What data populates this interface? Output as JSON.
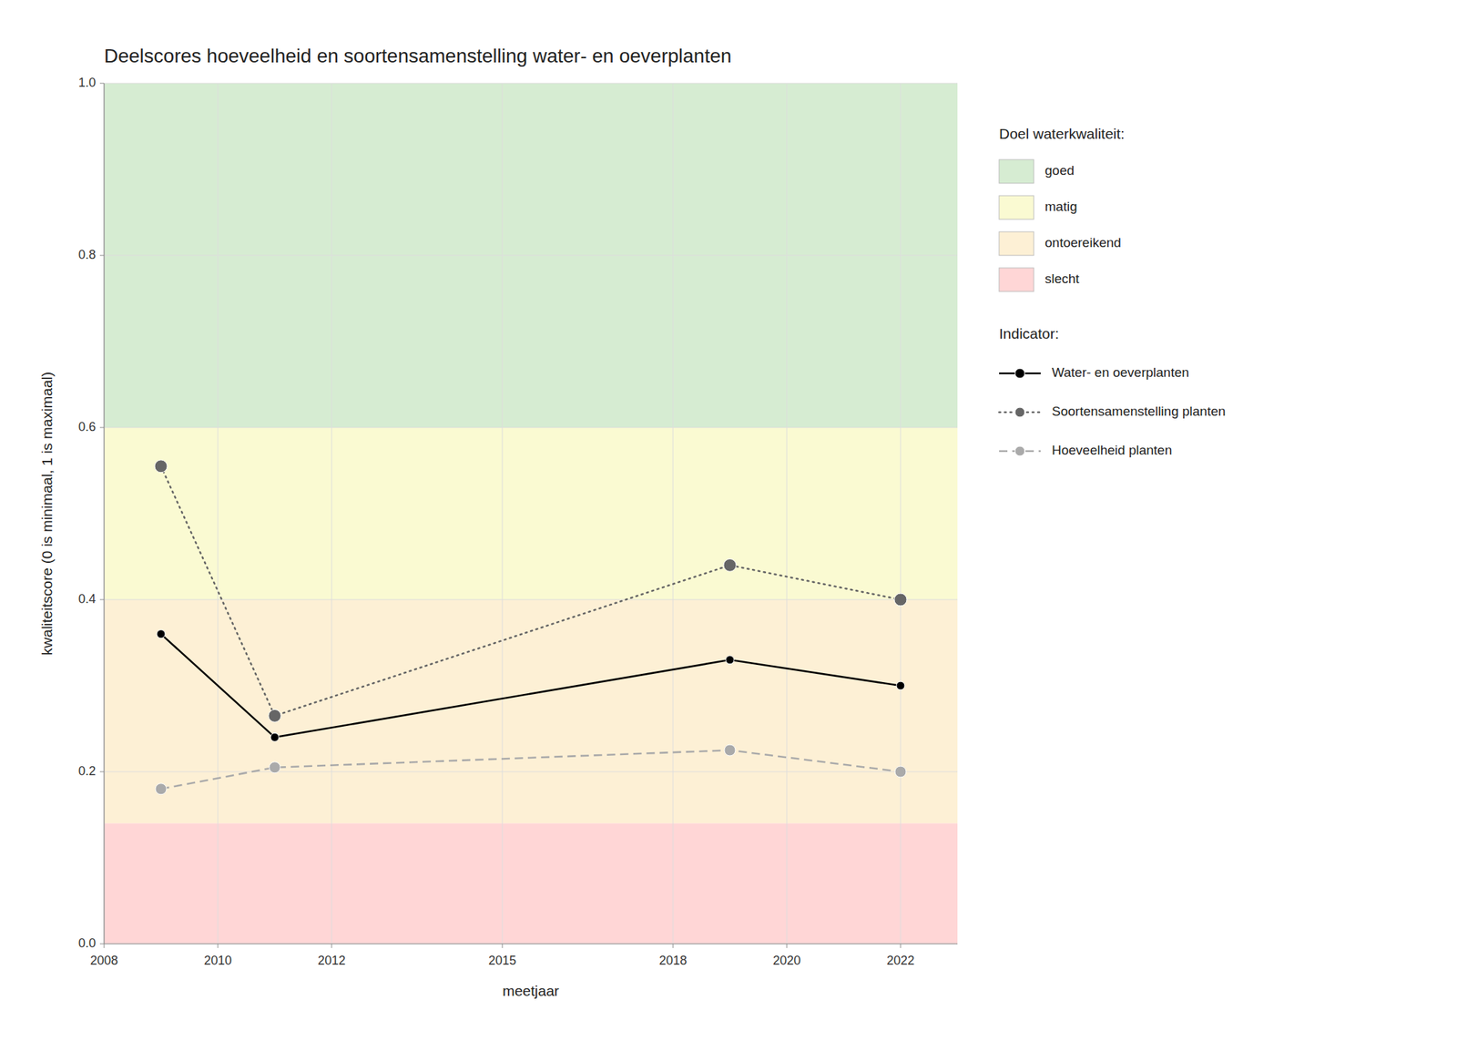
{
  "chart_data": {
    "type": "line",
    "title": "Deelscores hoeveelheid en soortensamenstelling water- en oeverplanten",
    "x_label": "meetjaar",
    "y_label": "kwaliteitscore (0 is minimaal, 1 is maximaal)",
    "x": [
      2009,
      2011,
      2019,
      2022
    ],
    "xlim": [
      2008,
      2023
    ],
    "xticks": [
      2008,
      2010,
      2012,
      2015,
      2018,
      2020,
      2022
    ],
    "ylim": [
      0.0,
      1.0
    ],
    "yticks": [
      {
        "value": 0.0,
        "label": "0.0"
      },
      0.2,
      0.4,
      0.6,
      0.8,
      {
        "value": 1.0,
        "label": "1.0"
      }
    ],
    "grid": true,
    "legend": "right",
    "zone_legend_title": "Doel waterkwaliteit:",
    "series_legend_title": "Indicator:",
    "zones": [
      {
        "name": "goed",
        "color": "#d6ecd2",
        "range": [
          0.6,
          1.0
        ]
      },
      {
        "name": "matig",
        "color": "#fafad2",
        "range": [
          0.4,
          0.6
        ]
      },
      {
        "name": "ontoereikend",
        "color": "#fdf0d5",
        "range": [
          0.14,
          0.4
        ]
      },
      {
        "name": "slecht",
        "color": "#ffd6d6",
        "range": [
          0.0,
          0.14
        ]
      }
    ],
    "series": [
      {
        "name": "Water- en oeverplanten",
        "color": "#000000",
        "line_style": "solid",
        "marker": "circle",
        "values": [
          0.36,
          0.24,
          0.33,
          0.3
        ]
      },
      {
        "name": "Soortensamenstelling planten",
        "color": "#666666",
        "line_style": "dotted",
        "marker": "circle",
        "values": [
          0.555,
          0.265,
          0.44,
          0.4
        ]
      },
      {
        "name": "Hoeveelheid planten",
        "color": "#aaaaaa",
        "line_style": "dashed",
        "marker": "circle",
        "values": [
          0.18,
          0.205,
          0.225,
          0.2
        ]
      }
    ]
  }
}
